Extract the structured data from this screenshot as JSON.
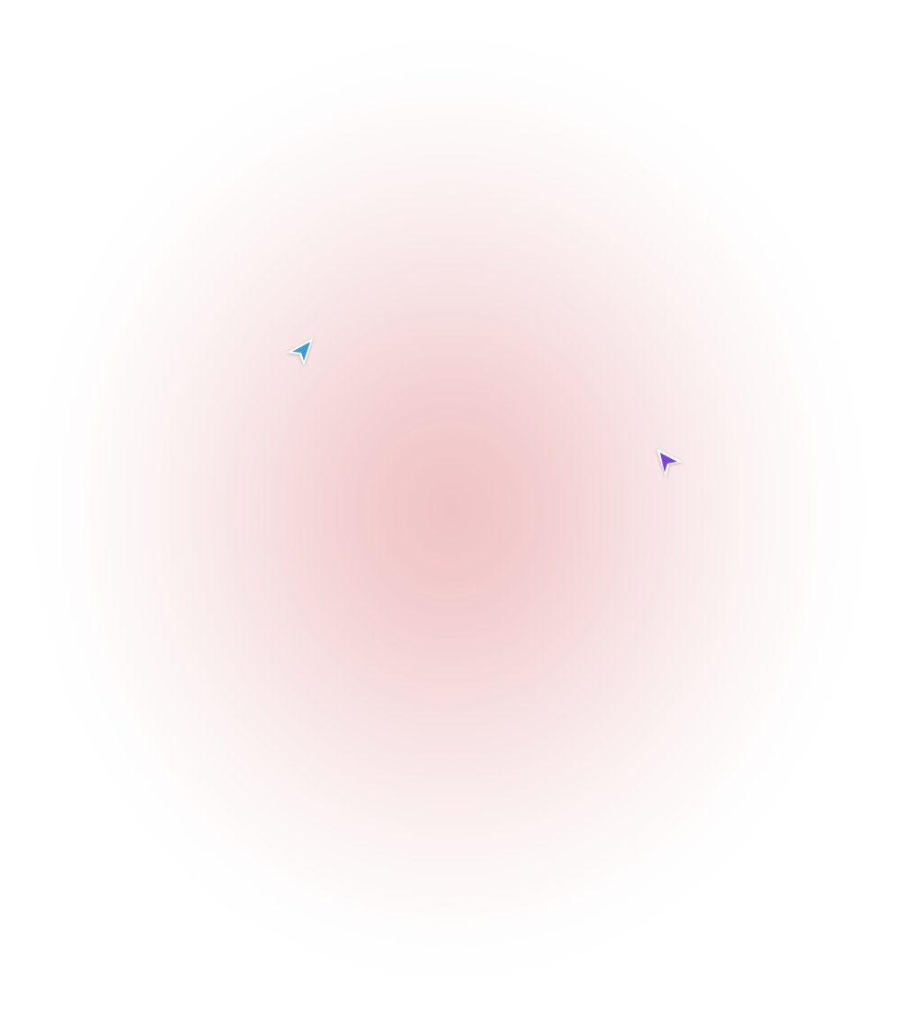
{
  "background": {
    "glow_color": "#f2cccd",
    "base_color": "#ffffff"
  },
  "cursors": [
    {
      "icon": "cursor-arrow-icon",
      "color": "#3a9bd6"
    },
    {
      "icon": "cursor-arrow-icon",
      "color": "#7a46d8"
    }
  ]
}
